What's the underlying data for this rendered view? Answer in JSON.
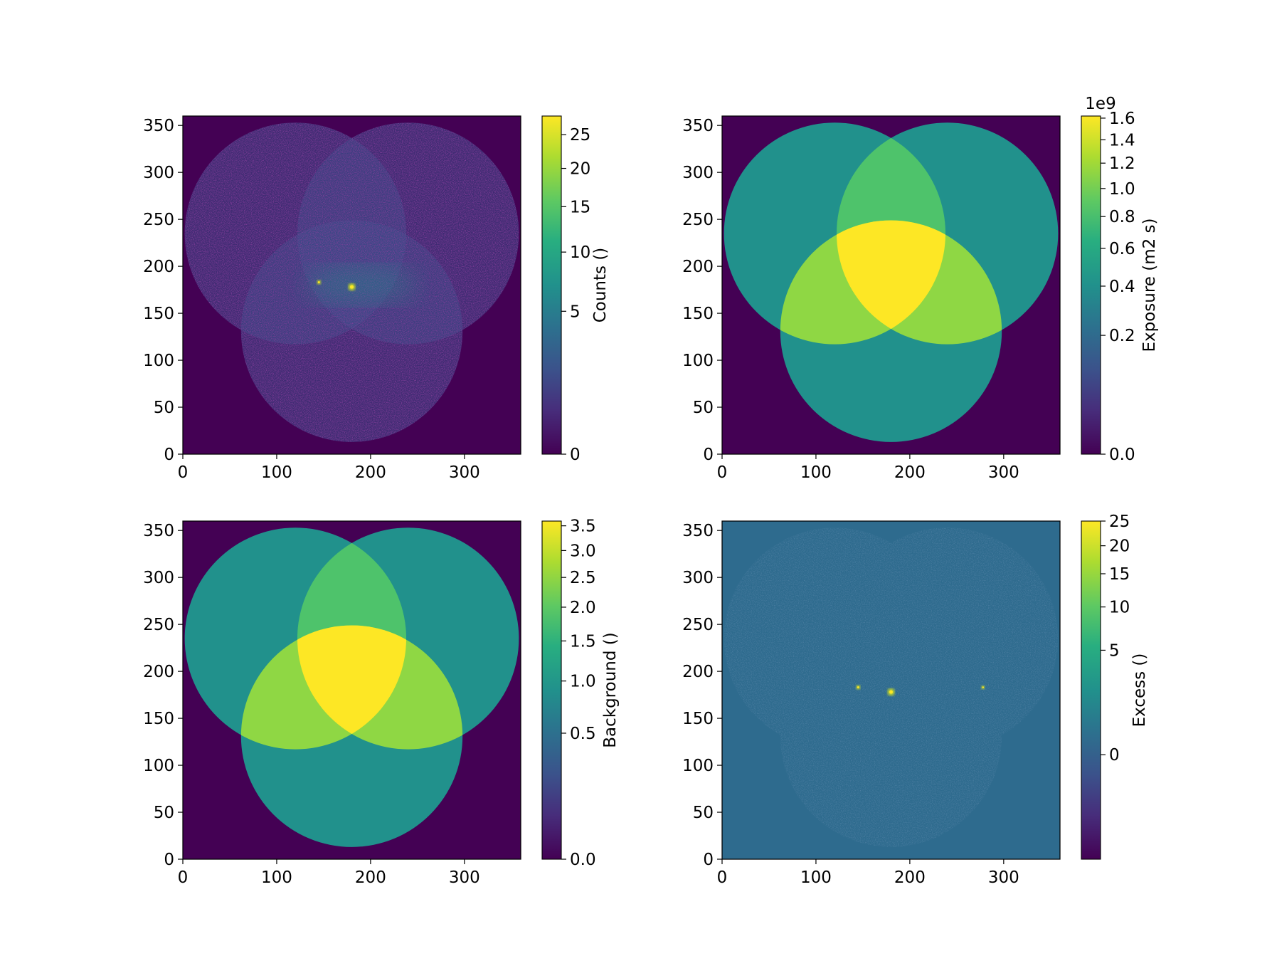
{
  "chart_data": [
    {
      "type": "heatmap",
      "title": "",
      "xlabel": "",
      "ylabel": "",
      "xlim": [
        0,
        360
      ],
      "ylim": [
        0,
        360
      ],
      "x_ticks": [
        "0",
        "100",
        "200",
        "300"
      ],
      "y_ticks": [
        "0",
        "50",
        "100",
        "150",
        "200",
        "250",
        "300",
        "350"
      ],
      "colormap": "viridis",
      "colorbar": {
        "label": "Counts ()",
        "scale": "sqrt",
        "range": [
          0,
          28
        ],
        "ticks": [
          {
            "value": 0,
            "label": "0"
          },
          {
            "value": 5,
            "label": "5"
          },
          {
            "value": 10,
            "label": "10"
          },
          {
            "value": 15,
            "label": "15"
          },
          {
            "value": 20,
            "label": "20"
          },
          {
            "value": 25,
            "label": "25"
          }
        ]
      },
      "content": "noisy counts within three overlapping circular fields, bright point sources near (180,178) and (145,183)"
    },
    {
      "type": "heatmap",
      "title": "",
      "xlabel": "",
      "ylabel": "",
      "xlim": [
        0,
        360
      ],
      "ylim": [
        0,
        360
      ],
      "x_ticks": [
        "0",
        "100",
        "200",
        "300"
      ],
      "y_ticks": [
        "0",
        "50",
        "100",
        "150",
        "200",
        "250",
        "300",
        "350"
      ],
      "colormap": "viridis",
      "colorbar": {
        "label": "Exposure (m2 s)",
        "scale": "sqrt",
        "offset_label": "1e9",
        "range": [
          0,
          1.62
        ],
        "ticks": [
          {
            "value": 0,
            "label": "0.0"
          },
          {
            "value": 0.2,
            "label": "0.2"
          },
          {
            "value": 0.4,
            "label": "0.4"
          },
          {
            "value": 0.6,
            "label": "0.6"
          },
          {
            "value": 0.8,
            "label": "0.8"
          },
          {
            "value": 1.0,
            "label": "1.0"
          },
          {
            "value": 1.2,
            "label": "1.2"
          },
          {
            "value": 1.4,
            "label": "1.4"
          },
          {
            "value": 1.6,
            "label": "1.6"
          }
        ]
      },
      "content": "three overlapping circular exposure fields, highest where all three overlap"
    },
    {
      "type": "heatmap",
      "title": "",
      "xlabel": "",
      "ylabel": "",
      "xlim": [
        0,
        360
      ],
      "ylim": [
        0,
        360
      ],
      "x_ticks": [
        "0",
        "100",
        "200",
        "300"
      ],
      "y_ticks": [
        "0",
        "50",
        "100",
        "150",
        "200",
        "250",
        "300",
        "350"
      ],
      "colormap": "viridis",
      "colorbar": {
        "label": "Background ()",
        "scale": "sqrt",
        "range": [
          0,
          3.6
        ],
        "ticks": [
          {
            "value": 0,
            "label": "0.0"
          },
          {
            "value": 0.5,
            "label": "0.5"
          },
          {
            "value": 1.0,
            "label": "1.0"
          },
          {
            "value": 1.5,
            "label": "1.5"
          },
          {
            "value": 2.0,
            "label": "2.0"
          },
          {
            "value": 2.5,
            "label": "2.5"
          },
          {
            "value": 3.0,
            "label": "3.0"
          },
          {
            "value": 3.5,
            "label": "3.5"
          }
        ]
      },
      "content": "background model from three overlapping circular fields"
    },
    {
      "type": "heatmap",
      "title": "",
      "xlabel": "",
      "ylabel": "",
      "xlim": [
        0,
        360
      ],
      "ylim": [
        0,
        360
      ],
      "x_ticks": [
        "0",
        "100",
        "200",
        "300"
      ],
      "y_ticks": [
        "0",
        "50",
        "100",
        "150",
        "200",
        "250",
        "300",
        "350"
      ],
      "colormap": "viridis",
      "colorbar": {
        "label": "Excess ()",
        "scale": "sqrt",
        "range": [
          -5,
          25
        ],
        "ticks": [
          {
            "value": 0,
            "label": "0"
          },
          {
            "value": 5,
            "label": "5"
          },
          {
            "value": 10,
            "label": "10"
          },
          {
            "value": 15,
            "label": "15"
          },
          {
            "value": 20,
            "label": "20"
          },
          {
            "value": 25,
            "label": "25"
          }
        ]
      },
      "content": "excess map near zero with noise, sources near (180,178), (145,183), (278,183)"
    }
  ],
  "colors": {
    "viridis_0": "#440154",
    "viridis_25": "#3b528b",
    "viridis_50": "#21918c",
    "viridis_75": "#5ec962",
    "viridis_100": "#fde725"
  }
}
